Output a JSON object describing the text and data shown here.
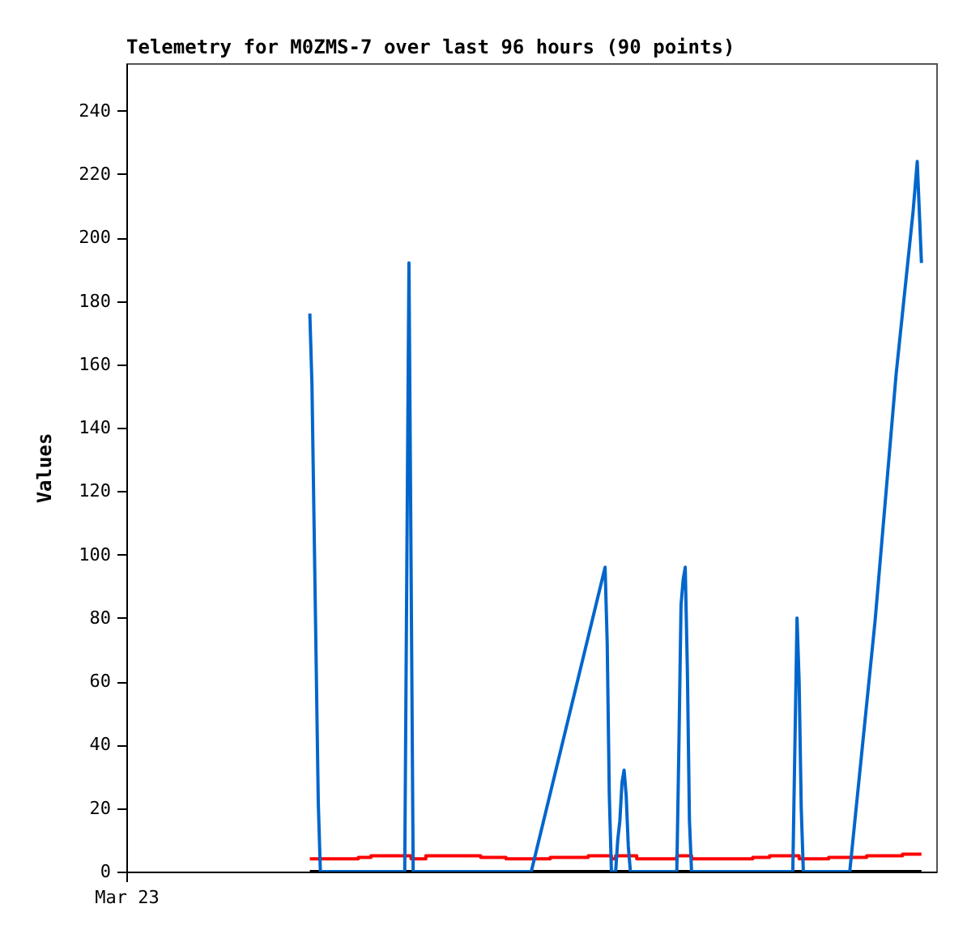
{
  "chart_data": {
    "type": "line",
    "title": "Telemetry for M0ZMS-7 over last 96 hours (90 points)",
    "ylabel": "Values",
    "categories": [
      "Mar 23",
      null,
      null,
      null,
      null,
      null,
      null,
      null,
      null,
      null,
      null,
      null,
      null,
      null,
      null,
      null,
      null,
      null,
      null,
      null,
      null,
      null,
      null,
      null,
      null,
      null,
      null,
      null,
      null,
      null,
      null,
      null,
      null,
      null,
      null,
      null,
      null,
      null,
      null,
      null,
      null,
      null,
      null,
      null,
      null,
      null,
      null,
      null,
      null,
      null,
      null,
      null,
      null,
      null,
      null,
      null,
      null,
      null,
      null,
      null,
      null,
      null,
      null,
      null,
      null,
      null,
      null,
      null,
      null,
      null,
      null,
      null,
      null,
      null,
      null,
      null,
      null,
      null,
      null,
      null,
      null,
      null,
      null,
      null,
      null,
      null,
      null,
      null,
      null,
      null,
      null,
      null,
      null,
      null,
      null,
      null,
      null,
      null,
      null,
      null,
      null,
      null,
      null,
      null,
      null,
      null,
      null,
      null,
      null,
      null,
      null,
      null,
      null,
      null,
      null,
      null,
      null,
      null,
      null,
      null,
      null,
      null,
      null,
      null,
      null,
      null,
      null,
      null,
      null,
      null,
      null,
      null,
      null,
      null,
      null,
      null,
      null,
      null,
      null,
      null,
      null,
      null,
      null,
      null,
      null,
      null,
      null,
      null,
      null,
      null,
      null,
      null,
      null,
      null,
      null,
      null,
      null,
      null,
      null,
      null,
      null,
      null,
      null,
      null,
      null,
      null,
      null,
      null,
      null,
      null,
      null,
      null,
      null,
      null,
      null,
      null,
      null,
      null,
      null,
      null,
      null,
      null,
      null,
      null,
      null,
      null,
      null,
      null,
      null,
      null,
      null,
      null,
      null,
      null,
      null,
      null,
      null,
      null,
      null,
      null,
      null,
      null,
      null,
      null,
      null,
      null,
      null,
      null,
      null,
      null,
      null,
      null,
      null,
      null,
      null,
      null,
      null,
      null,
      null,
      null,
      null,
      null,
      null,
      null,
      null,
      null,
      null,
      null,
      null,
      null,
      null,
      null,
      null,
      null,
      null,
      null,
      null,
      null,
      null,
      null,
      null,
      null,
      null,
      null,
      null,
      null,
      null,
      null,
      null,
      null,
      null,
      null,
      null,
      null,
      null,
      null,
      null,
      null,
      null,
      null,
      null,
      null,
      null,
      null,
      null,
      null,
      null,
      null,
      null,
      null,
      null,
      null,
      null,
      null,
      null,
      null,
      null,
      null,
      null,
      null,
      null,
      null,
      null,
      null,
      null,
      null,
      null,
      null,
      null,
      null,
      null,
      null,
      null,
      null,
      null,
      null,
      null,
      null,
      null,
      null,
      null,
      null,
      null,
      null,
      null,
      null,
      null,
      null,
      null,
      null,
      null,
      null,
      null,
      null,
      null,
      null,
      null,
      null,
      null,
      null,
      null,
      null,
      null,
      null,
      null,
      null,
      null,
      null,
      null,
      null,
      null,
      null,
      null,
      null,
      null,
      null,
      null,
      null,
      null,
      null,
      null,
      null,
      null,
      null,
      null,
      null,
      null,
      null,
      null,
      null,
      null,
      null,
      null,
      null,
      null,
      null,
      null,
      null,
      null,
      null,
      null,
      null,
      null,
      null,
      null,
      null,
      null,
      null,
      null,
      null,
      null,
      null,
      null,
      null,
      null,
      null,
      null,
      null,
      null,
      null,
      null,
      null,
      null,
      null,
      null
    ],
    "ylim": [
      0,
      255
    ],
    "yticks": [
      0,
      20,
      40,
      60,
      80,
      100,
      120,
      140,
      160,
      180,
      200,
      220,
      240
    ],
    "grid": false,
    "marker": "none",
    "line_style": "solid",
    "series": [
      {
        "color": "#000000",
        "values": [
          null,
          null,
          null,
          null,
          null,
          null,
          null,
          null,
          null,
          null,
          null,
          null,
          null,
          null,
          null,
          null,
          null,
          null,
          null,
          null,
          null,
          null,
          null,
          null,
          null,
          null,
          null,
          null,
          null,
          null,
          null,
          null,
          null,
          null,
          null,
          null,
          null,
          null,
          null,
          null,
          null,
          null,
          null,
          null,
          null,
          null,
          null,
          null,
          null,
          null,
          null,
          null,
          null,
          null,
          null,
          null,
          null,
          null,
          null,
          null,
          null,
          null,
          null,
          null,
          null,
          null,
          null,
          null,
          null,
          null,
          null,
          null,
          null,
          null,
          null,
          null,
          null,
          null,
          null,
          null,
          null,
          null,
          null,
          null,
          null,
          null,
          null,
          0,
          null,
          null,
          null,
          null,
          null,
          null,
          null,
          null,
          null,
          null,
          null,
          null,
          null,
          null,
          null,
          null,
          null,
          null,
          null,
          null,
          null,
          null,
          null,
          null,
          null,
          null,
          null,
          null,
          null,
          null,
          null,
          null,
          null,
          null,
          null,
          null,
          null,
          null,
          null,
          null,
          null,
          null,
          null,
          null,
          null,
          null,
          null,
          null,
          null,
          null,
          null,
          null,
          null,
          null,
          null,
          null,
          null,
          null,
          null,
          null,
          null,
          null,
          null,
          null,
          null,
          null,
          null,
          null,
          null,
          null,
          null,
          null,
          null,
          null,
          null,
          null,
          null,
          null,
          null,
          null,
          null,
          null,
          null,
          null,
          null,
          null,
          null,
          null,
          null,
          null,
          null,
          null,
          null,
          null,
          null,
          null,
          null,
          null,
          null,
          null,
          null,
          null,
          null,
          null,
          null,
          null,
          null,
          null,
          null,
          null,
          null,
          null,
          null,
          null,
          null,
          null,
          null,
          null,
          null,
          null,
          null,
          null,
          null,
          null,
          null,
          null,
          null,
          null,
          null,
          null,
          null,
          null,
          null,
          null,
          null,
          null,
          null,
          null,
          null,
          null,
          null,
          null,
          null,
          null,
          null,
          null,
          null,
          null,
          null,
          null,
          null,
          null,
          null,
          null,
          null,
          null,
          null,
          null,
          null,
          null,
          null,
          null,
          null,
          null,
          null,
          null,
          null,
          null,
          null,
          null,
          null,
          null,
          null,
          null,
          null,
          null,
          null,
          null,
          null,
          null,
          null,
          null,
          null,
          null,
          null,
          null,
          null,
          null,
          null,
          null,
          null,
          null,
          null,
          null,
          null,
          null,
          null,
          null,
          null,
          null,
          null,
          null,
          null,
          null,
          null,
          null,
          null,
          null,
          null,
          null,
          null,
          null,
          null,
          null,
          null,
          null,
          null,
          null,
          null,
          null,
          null,
          null,
          null,
          null,
          null,
          null,
          null,
          null,
          null,
          null,
          null,
          null,
          null,
          null,
          null,
          null,
          null,
          null,
          null,
          null,
          null,
          null,
          null,
          null,
          null,
          null,
          null,
          null,
          null,
          null,
          null,
          null,
          null,
          null,
          null,
          null,
          null,
          null,
          null,
          null,
          null,
          null,
          null,
          null,
          null,
          null,
          null,
          null,
          null,
          null,
          null,
          null,
          null,
          null,
          null,
          null,
          null,
          null,
          null,
          null,
          null,
          null,
          null,
          null,
          null,
          null,
          null,
          null,
          null,
          0,
          null,
          null,
          null,
          null,
          null,
          null,
          null
        ]
      },
      {
        "type": "step",
        "color": "#ff0000",
        "values": [
          null,
          null,
          null,
          null,
          null,
          null,
          null,
          null,
          null,
          null,
          null,
          null,
          null,
          null,
          null,
          null,
          null,
          null,
          null,
          null,
          null,
          null,
          null,
          null,
          null,
          null,
          null,
          null,
          null,
          null,
          null,
          null,
          null,
          null,
          null,
          null,
          null,
          null,
          null,
          null,
          null,
          null,
          null,
          null,
          null,
          null,
          null,
          null,
          null,
          null,
          null,
          null,
          null,
          null,
          null,
          null,
          null,
          null,
          null,
          null,
          null,
          null,
          null,
          null,
          null,
          null,
          null,
          null,
          null,
          null,
          null,
          null,
          null,
          null,
          null,
          null,
          null,
          null,
          null,
          null,
          null,
          null,
          null,
          null,
          null,
          null,
          null,
          4,
          null,
          null,
          null,
          null,
          null,
          null,
          null,
          null,
          null,
          null,
          null,
          null,
          null,
          null,
          null,
          null,
          null,
          null,
          null,
          null,
          null,
          null,
          4.5,
          null,
          null,
          null,
          null,
          null,
          5,
          null,
          null,
          null,
          null,
          null,
          null,
          null,
          null,
          null,
          null,
          null,
          null,
          null,
          null,
          null,
          null,
          null,
          null,
          4,
          null,
          null,
          null,
          null,
          null,
          null,
          5,
          null,
          null,
          null,
          null,
          null,
          null,
          null,
          null,
          null,
          null,
          null,
          null,
          null,
          null,
          null,
          null,
          null,
          null,
          null,
          null,
          null,
          null,
          null,
          null,
          null,
          4.5,
          null,
          null,
          null,
          null,
          null,
          null,
          null,
          null,
          null,
          null,
          null,
          4,
          null,
          null,
          null,
          null,
          null,
          null,
          null,
          null,
          null,
          null,
          null,
          null,
          null,
          null,
          null,
          null,
          null,
          null,
          null,
          null,
          4.5,
          null,
          null,
          null,
          null,
          null,
          null,
          null,
          null,
          null,
          null,
          null,
          null,
          null,
          null,
          null,
          null,
          null,
          5,
          null,
          null,
          null,
          null,
          null,
          null,
          null,
          null,
          null,
          null,
          4,
          null,
          5,
          null,
          null,
          null,
          null,
          null,
          null,
          null,
          null,
          null,
          4,
          null,
          null,
          null,
          null,
          null,
          null,
          null,
          null,
          null,
          null,
          null,
          null,
          null,
          null,
          null,
          null,
          null,
          null,
          5,
          null,
          null,
          null,
          null,
          null,
          null,
          4,
          null,
          null,
          null,
          null,
          null,
          null,
          null,
          null,
          null,
          null,
          null,
          null,
          null,
          null,
          null,
          null,
          null,
          null,
          null,
          null,
          null,
          null,
          null,
          null,
          null,
          null,
          null,
          null,
          4.5,
          null,
          null,
          null,
          null,
          null,
          null,
          null,
          5,
          null,
          null,
          null,
          null,
          null,
          null,
          null,
          null,
          null,
          null,
          null,
          null,
          null,
          4,
          null,
          null,
          null,
          null,
          null,
          null,
          null,
          null,
          null,
          null,
          null,
          null,
          null,
          4.5,
          null,
          null,
          null,
          null,
          null,
          null,
          null,
          null,
          null,
          null,
          null,
          null,
          null,
          null,
          null,
          null,
          null,
          5,
          null,
          null,
          null,
          null,
          null,
          null,
          null,
          null,
          null,
          null,
          null,
          null,
          null,
          null,
          null,
          null,
          5.5,
          null,
          null,
          null,
          null,
          null,
          null,
          null,
          null,
          5.5,
          null,
          null,
          null,
          null,
          null,
          null,
          null
        ]
      },
      {
        "color": "#0066cc",
        "values": [
          null,
          null,
          null,
          null,
          null,
          null,
          null,
          null,
          null,
          null,
          null,
          null,
          null,
          null,
          null,
          null,
          null,
          null,
          null,
          null,
          null,
          null,
          null,
          null,
          null,
          null,
          null,
          null,
          null,
          null,
          null,
          null,
          null,
          null,
          null,
          null,
          null,
          null,
          null,
          null,
          null,
          null,
          null,
          null,
          null,
          null,
          null,
          null,
          null,
          null,
          null,
          null,
          null,
          null,
          null,
          null,
          null,
          null,
          null,
          null,
          null,
          null,
          null,
          null,
          null,
          null,
          null,
          null,
          null,
          null,
          null,
          null,
          null,
          null,
          null,
          null,
          null,
          null,
          null,
          null,
          null,
          null,
          null,
          null,
          null,
          null,
          null,
          176,
          154,
          110,
          66,
          22,
          0,
          null,
          null,
          null,
          null,
          null,
          null,
          null,
          null,
          null,
          null,
          null,
          null,
          null,
          null,
          null,
          null,
          null,
          null,
          null,
          null,
          null,
          null,
          null,
          null,
          null,
          null,
          null,
          null,
          null,
          null,
          null,
          null,
          null,
          null,
          null,
          null,
          null,
          null,
          null,
          0,
          97,
          192,
          97,
          0,
          null,
          null,
          null,
          null,
          null,
          null,
          null,
          null,
          null,
          null,
          null,
          null,
          null,
          null,
          null,
          null,
          null,
          null,
          null,
          null,
          null,
          null,
          null,
          null,
          null,
          null,
          null,
          null,
          null,
          null,
          null,
          null,
          null,
          null,
          null,
          null,
          null,
          null,
          null,
          null,
          null,
          null,
          null,
          null,
          null,
          null,
          null,
          null,
          null,
          null,
          null,
          null,
          null,
          null,
          null,
          0,
          null,
          null,
          null,
          null,
          null,
          null,
          null,
          null,
          null,
          null,
          null,
          null,
          null,
          null,
          null,
          null,
          null,
          null,
          null,
          null,
          null,
          null,
          null,
          null,
          null,
          null,
          null,
          null,
          null,
          null,
          null,
          null,
          null,
          null,
          96,
          72,
          24,
          0,
          null,
          0,
          10,
          16,
          28,
          32,
          24,
          8,
          0,
          null,
          null,
          null,
          null,
          null,
          null,
          null,
          null,
          null,
          null,
          null,
          null,
          null,
          null,
          null,
          null,
          null,
          null,
          null,
          null,
          null,
          0,
          40,
          84,
          92,
          96,
          64,
          16,
          0,
          null,
          null,
          null,
          null,
          null,
          null,
          null,
          null,
          null,
          null,
          null,
          null,
          null,
          null,
          null,
          null,
          null,
          null,
          null,
          null,
          null,
          null,
          null,
          null,
          null,
          null,
          null,
          null,
          null,
          null,
          null,
          null,
          null,
          null,
          null,
          null,
          null,
          null,
          null,
          null,
          null,
          null,
          null,
          null,
          null,
          null,
          null,
          0,
          40,
          80,
          60,
          20,
          0,
          null,
          null,
          null,
          null,
          null,
          null,
          null,
          null,
          null,
          null,
          null,
          null,
          null,
          null,
          null,
          null,
          null,
          null,
          null,
          null,
          null,
          0,
          null,
          null,
          null,
          null,
          null,
          null,
          null,
          null,
          null,
          null,
          null,
          79,
          null,
          null,
          null,
          null,
          null,
          null,
          null,
          null,
          null,
          157,
          null,
          null,
          null,
          null,
          null,
          null,
          null,
          208,
          216,
          224,
          208,
          192,
          null,
          null,
          null,
          null,
          null,
          null,
          null
        ]
      }
    ]
  }
}
